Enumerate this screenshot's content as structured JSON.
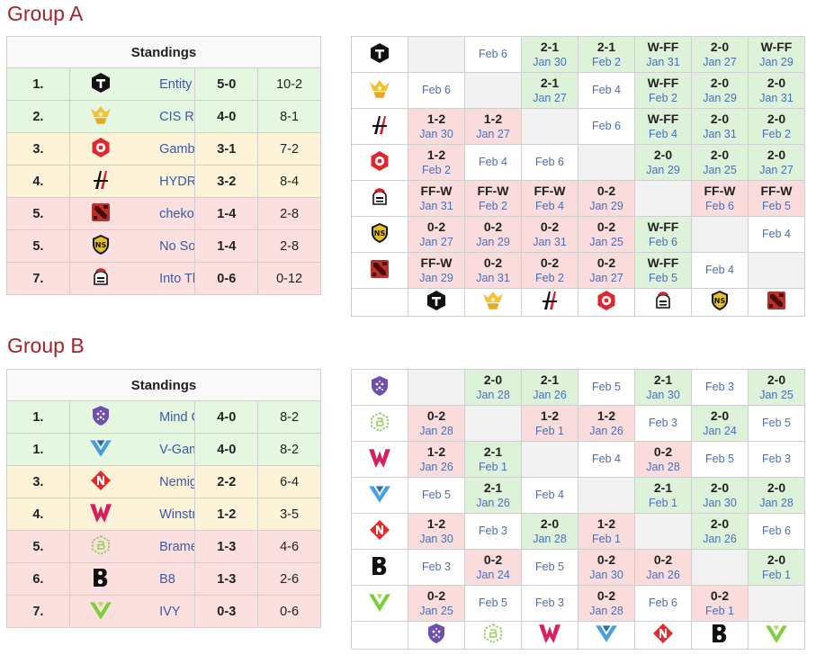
{
  "groups": [
    {
      "title": "Group A",
      "standings_header": "Standings",
      "teams": [
        {
          "rank": "1.",
          "name": "Entity",
          "record": "5-0",
          "games": "10-2",
          "status": "up",
          "icon": "entity-logo-icon"
        },
        {
          "rank": "2.",
          "name": "CIS Rejects",
          "record": "4-0",
          "games": "8-1",
          "status": "up",
          "icon": "cis-rejects-logo-icon"
        },
        {
          "rank": "3.",
          "name": "Gambit Esports",
          "record": "3-1",
          "games": "7-2",
          "status": "stay",
          "icon": "gambit-logo-icon"
        },
        {
          "rank": "4.",
          "name": "HYDRA",
          "record": "3-2",
          "games": "8-4",
          "status": "stay",
          "icon": "hydra-logo-icon"
        },
        {
          "rank": "5.",
          "name": "chekoldyriki",
          "record": "1-4",
          "games": "2-8",
          "status": "down",
          "icon": "dota-logo-icon"
        },
        {
          "rank": "5.",
          "name": "No Sorry",
          "record": "1-4",
          "games": "2-8",
          "status": "down",
          "icon": "no-sorry-logo-icon"
        },
        {
          "rank": "7.",
          "name": "Into The Breach",
          "record": "0-6",
          "games": "0-12",
          "status": "down",
          "icon": "into-the-breach-logo-icon"
        }
      ],
      "cross_row_icons": [
        "entity-logo-icon",
        "cis-rejects-logo-icon",
        "hydra-logo-icon",
        "gambit-logo-icon",
        "into-the-breach-logo-icon",
        "no-sorry-logo-icon",
        "dota-logo-icon"
      ],
      "cross_col_icons": [
        "entity-logo-icon",
        "cis-rejects-logo-icon",
        "hydra-logo-icon",
        "gambit-logo-icon",
        "into-the-breach-logo-icon",
        "no-sorry-logo-icon",
        "dota-logo-icon"
      ],
      "matrix": [
        [
          {
            "t": "x"
          },
          {
            "t": "n",
            "d": "Feb 6"
          },
          {
            "t": "w",
            "s": "2-1",
            "d": "Jan 30"
          },
          {
            "t": "w",
            "s": "2-1",
            "d": "Feb 2"
          },
          {
            "t": "w",
            "s": "W-FF",
            "d": "Jan 31"
          },
          {
            "t": "w",
            "s": "2-0",
            "d": "Jan 27"
          },
          {
            "t": "w",
            "s": "W-FF",
            "d": "Jan 29"
          }
        ],
        [
          {
            "t": "n",
            "d": "Feb 6"
          },
          {
            "t": "x"
          },
          {
            "t": "w",
            "s": "2-1",
            "d": "Jan 27"
          },
          {
            "t": "n",
            "d": "Feb 4"
          },
          {
            "t": "w",
            "s": "W-FF",
            "d": "Feb 2"
          },
          {
            "t": "w",
            "s": "2-0",
            "d": "Jan 29"
          },
          {
            "t": "w",
            "s": "2-0",
            "d": "Jan 31"
          }
        ],
        [
          {
            "t": "l",
            "s": "1-2",
            "d": "Jan 30"
          },
          {
            "t": "l",
            "s": "1-2",
            "d": "Jan 27"
          },
          {
            "t": "x"
          },
          {
            "t": "n",
            "d": "Feb 6"
          },
          {
            "t": "w",
            "s": "W-FF",
            "d": "Feb 4"
          },
          {
            "t": "w",
            "s": "2-0",
            "d": "Jan 31"
          },
          {
            "t": "w",
            "s": "2-0",
            "d": "Feb 2"
          }
        ],
        [
          {
            "t": "l",
            "s": "1-2",
            "d": "Feb 2"
          },
          {
            "t": "n",
            "d": "Feb 4"
          },
          {
            "t": "n",
            "d": "Feb 6"
          },
          {
            "t": "x"
          },
          {
            "t": "w",
            "s": "2-0",
            "d": "Jan 29"
          },
          {
            "t": "w",
            "s": "2-0",
            "d": "Jan 25"
          },
          {
            "t": "w",
            "s": "2-0",
            "d": "Jan 27"
          }
        ],
        [
          {
            "t": "l",
            "s": "FF-W",
            "d": "Jan 31"
          },
          {
            "t": "l",
            "s": "FF-W",
            "d": "Feb 2"
          },
          {
            "t": "l",
            "s": "FF-W",
            "d": "Feb 4"
          },
          {
            "t": "l",
            "s": "0-2",
            "d": "Jan 29"
          },
          {
            "t": "x"
          },
          {
            "t": "l",
            "s": "FF-W",
            "d": "Feb 6"
          },
          {
            "t": "l",
            "s": "FF-W",
            "d": "Feb 5"
          }
        ],
        [
          {
            "t": "l",
            "s": "0-2",
            "d": "Jan 27"
          },
          {
            "t": "l",
            "s": "0-2",
            "d": "Jan 29"
          },
          {
            "t": "l",
            "s": "0-2",
            "d": "Jan 31"
          },
          {
            "t": "l",
            "s": "0-2",
            "d": "Jan 25"
          },
          {
            "t": "w",
            "s": "W-FF",
            "d": "Feb 6"
          },
          {
            "t": "x"
          },
          {
            "t": "n",
            "d": "Feb 4"
          }
        ],
        [
          {
            "t": "l",
            "s": "FF-W",
            "d": "Jan 29"
          },
          {
            "t": "l",
            "s": "0-2",
            "d": "Jan 31"
          },
          {
            "t": "l",
            "s": "0-2",
            "d": "Feb 2"
          },
          {
            "t": "l",
            "s": "0-2",
            "d": "Jan 27"
          },
          {
            "t": "w",
            "s": "W-FF",
            "d": "Feb 5"
          },
          {
            "t": "n",
            "d": "Feb 4"
          },
          {
            "t": "x"
          }
        ]
      ]
    },
    {
      "title": "Group B",
      "standings_header": "Standings",
      "teams": [
        {
          "rank": "1.",
          "name": "Mind Games",
          "record": "4-0",
          "games": "8-2",
          "status": "up",
          "icon": "mind-games-logo-icon"
        },
        {
          "rank": "1.",
          "name": "V-Gaming",
          "record": "4-0",
          "games": "8-2",
          "status": "up",
          "icon": "v-gaming-logo-icon"
        },
        {
          "rank": "3.",
          "name": "Nemiga Gaming",
          "record": "2-2",
          "games": "6-4",
          "status": "stay",
          "icon": "nemiga-logo-icon"
        },
        {
          "rank": "4.",
          "name": "Winstrike Team",
          "record": "1-2",
          "games": "3-5",
          "status": "stay",
          "icon": "winstrike-logo-icon"
        },
        {
          "rank": "5.",
          "name": "Brame",
          "record": "1-3",
          "games": "4-6",
          "status": "down",
          "icon": "brame-logo-icon"
        },
        {
          "rank": "6.",
          "name": "B8",
          "record": "1-3",
          "games": "2-6",
          "status": "down",
          "icon": "b8-logo-icon"
        },
        {
          "rank": "7.",
          "name": "IVY",
          "record": "0-3",
          "games": "0-6",
          "status": "down",
          "icon": "ivy-logo-icon"
        }
      ],
      "cross_row_icons": [
        "mind-games-logo-icon",
        "brame-logo-icon",
        "winstrike-logo-icon",
        "v-gaming-logo-icon",
        "nemiga-logo-icon",
        "b8-logo-icon",
        "ivy-logo-icon"
      ],
      "cross_col_icons": [
        "mind-games-logo-icon",
        "brame-logo-icon",
        "winstrike-logo-icon",
        "v-gaming-logo-icon",
        "nemiga-logo-icon",
        "b8-logo-icon",
        "ivy-logo-icon"
      ],
      "matrix": [
        [
          {
            "t": "x"
          },
          {
            "t": "w",
            "s": "2-0",
            "d": "Jan 28"
          },
          {
            "t": "w",
            "s": "2-1",
            "d": "Jan 26"
          },
          {
            "t": "n",
            "d": "Feb 5"
          },
          {
            "t": "w",
            "s": "2-1",
            "d": "Jan 30"
          },
          {
            "t": "n",
            "d": "Feb 3"
          },
          {
            "t": "w",
            "s": "2-0",
            "d": "Jan 25"
          }
        ],
        [
          {
            "t": "l",
            "s": "0-2",
            "d": "Jan 28"
          },
          {
            "t": "x"
          },
          {
            "t": "l",
            "s": "1-2",
            "d": "Feb 1"
          },
          {
            "t": "l",
            "s": "1-2",
            "d": "Jan 26"
          },
          {
            "t": "n",
            "d": "Feb 3"
          },
          {
            "t": "w",
            "s": "2-0",
            "d": "Jan 24"
          },
          {
            "t": "n",
            "d": "Feb 5"
          }
        ],
        [
          {
            "t": "l",
            "s": "1-2",
            "d": "Jan 26"
          },
          {
            "t": "w",
            "s": "2-1",
            "d": "Feb 1"
          },
          {
            "t": "x"
          },
          {
            "t": "n",
            "d": "Feb 4"
          },
          {
            "t": "l",
            "s": "0-2",
            "d": "Jan 28"
          },
          {
            "t": "n",
            "d": "Feb 5"
          },
          {
            "t": "n",
            "d": "Feb 3"
          }
        ],
        [
          {
            "t": "n",
            "d": "Feb 5"
          },
          {
            "t": "w",
            "s": "2-1",
            "d": "Jan 26"
          },
          {
            "t": "n",
            "d": "Feb 4"
          },
          {
            "t": "x"
          },
          {
            "t": "w",
            "s": "2-1",
            "d": "Feb 1"
          },
          {
            "t": "w",
            "s": "2-0",
            "d": "Jan 30"
          },
          {
            "t": "w",
            "s": "2-0",
            "d": "Jan 28"
          }
        ],
        [
          {
            "t": "l",
            "s": "1-2",
            "d": "Jan 30"
          },
          {
            "t": "n",
            "d": "Feb 3"
          },
          {
            "t": "w",
            "s": "2-0",
            "d": "Jan 28"
          },
          {
            "t": "l",
            "s": "1-2",
            "d": "Feb 1"
          },
          {
            "t": "x"
          },
          {
            "t": "w",
            "s": "2-0",
            "d": "Jan 26"
          },
          {
            "t": "n",
            "d": "Feb 6"
          }
        ],
        [
          {
            "t": "n",
            "d": "Feb 3"
          },
          {
            "t": "l",
            "s": "0-2",
            "d": "Jan 24"
          },
          {
            "t": "n",
            "d": "Feb 5"
          },
          {
            "t": "l",
            "s": "0-2",
            "d": "Jan 30"
          },
          {
            "t": "l",
            "s": "0-2",
            "d": "Jan 26"
          },
          {
            "t": "x"
          },
          {
            "t": "w",
            "s": "2-0",
            "d": "Feb 1"
          }
        ],
        [
          {
            "t": "l",
            "s": "0-2",
            "d": "Jan 25"
          },
          {
            "t": "n",
            "d": "Feb 5"
          },
          {
            "t": "n",
            "d": "Feb 3"
          },
          {
            "t": "l",
            "s": "0-2",
            "d": "Jan 28"
          },
          {
            "t": "n",
            "d": "Feb 6"
          },
          {
            "t": "l",
            "s": "0-2",
            "d": "Feb 1"
          },
          {
            "t": "x"
          }
        ]
      ]
    }
  ],
  "colors": {
    "title": "#a3232c",
    "link": "#3a5aa8",
    "win_bg": "#def2da",
    "loss_bg": "#fbdcdc",
    "up_bg": "#e5f6e1",
    "stay_bg": "#fcf3d9",
    "down_bg": "#fbe0df"
  }
}
